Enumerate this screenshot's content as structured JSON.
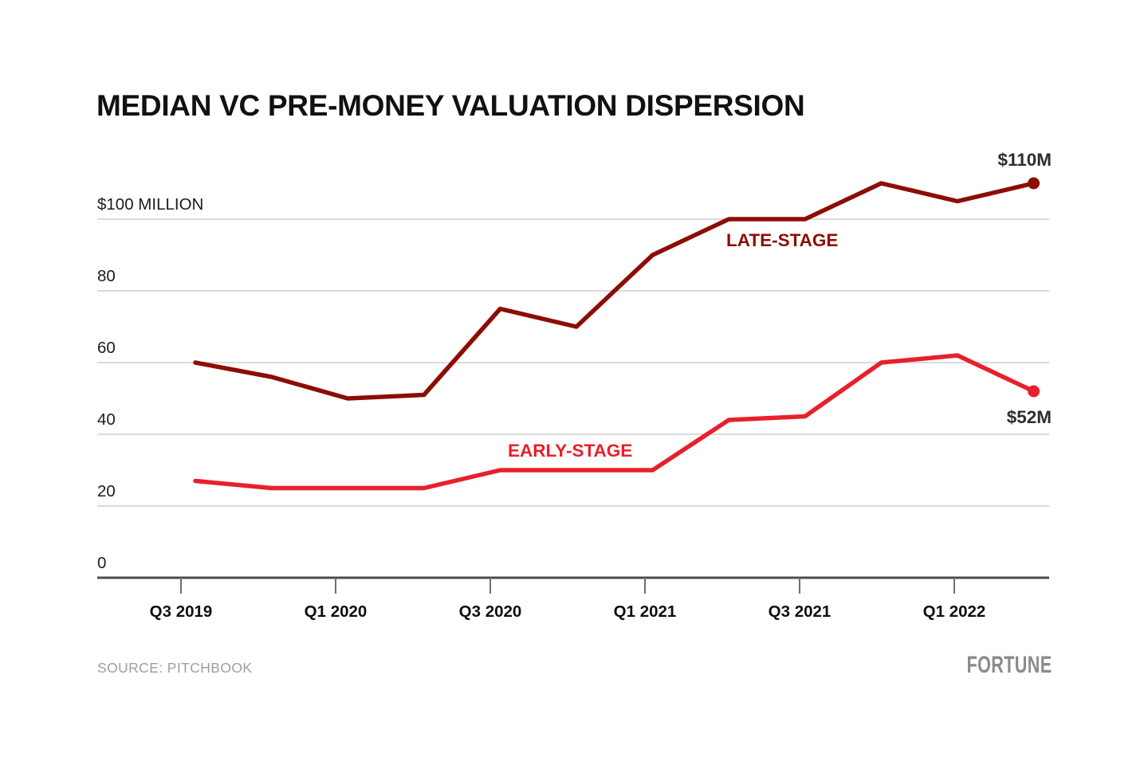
{
  "title": "MEDIAN VC PRE-MONEY VALUATION DISPERSION",
  "source": "SOURCE: PITCHBOOK",
  "brand": "FORTUNE",
  "chart_data": {
    "type": "line",
    "title": "MEDIAN VC PRE-MONEY VALUATION DISPERSION",
    "xlabel": "",
    "ylabel": "",
    "categories": [
      "Q3 2019",
      "Q4 2019",
      "Q1 2020",
      "Q2 2020",
      "Q3 2020",
      "Q4 2020",
      "Q1 2021",
      "Q2 2021",
      "Q3 2021",
      "Q4 2021",
      "Q1 2022",
      "Q2 2022"
    ],
    "x_tick_labels": [
      "Q3 2019",
      "Q1 2020",
      "Q3 2020",
      "Q1 2021",
      "Q3 2021",
      "Q1 2022"
    ],
    "yticks": [
      0,
      20,
      40,
      60,
      80,
      100
    ],
    "ytick_labels": [
      "0",
      "20",
      "40",
      "60",
      "80",
      "$100 MILLION"
    ],
    "ylim": [
      0,
      118
    ],
    "grid": "horizontal",
    "legend_position": "inline-labels",
    "axis_color": "#4c4c4c",
    "grid_color": "#dbdbdb",
    "tick_color": "#6e6e6e",
    "series": [
      {
        "name": "LATE-STAGE",
        "color": "#8C0D04",
        "end_label": "$110M",
        "values": [
          60,
          56,
          50,
          51,
          75,
          70,
          90,
          100,
          100,
          110,
          105,
          110
        ]
      },
      {
        "name": "EARLY-STAGE",
        "color": "#E8202B",
        "end_label": "$52M",
        "values": [
          27,
          25,
          25,
          25,
          30,
          30,
          30,
          44,
          45,
          60,
          62,
          52
        ]
      }
    ]
  }
}
